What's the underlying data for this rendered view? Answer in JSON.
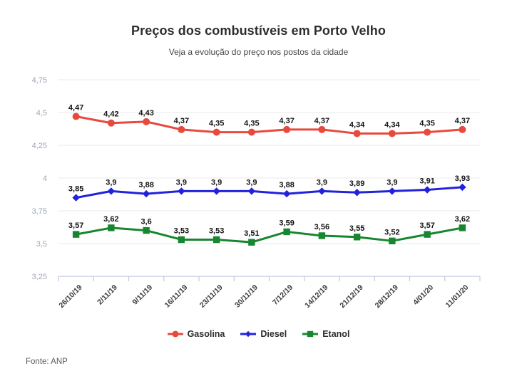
{
  "page": {
    "title": "Preços dos combustíveis em Porto Velho",
    "subtitle": "Veja a evolução do preço nos postos da cidade",
    "source": "Fonte: ANP"
  },
  "chart_data": {
    "type": "line",
    "title": "Preços dos combustíveis em Porto Velho",
    "subtitle": "Veja a evolução do preço nos postos da cidade",
    "source": "Fonte: ANP",
    "categories": [
      "26/10/19",
      "2/11/19",
      "9/11/19",
      "16/11/19",
      "23/11/19",
      "30/11/19",
      "7/12/19",
      "14/12/19",
      "21/12/19",
      "28/12/19",
      "4/01/20",
      "11/01/20"
    ],
    "series": [
      {
        "name": "Gasolina",
        "color": "#e8493d",
        "marker": "circle",
        "values": [
          4.47,
          4.42,
          4.43,
          4.37,
          4.35,
          4.35,
          4.37,
          4.37,
          4.34,
          4.34,
          4.35,
          4.37
        ],
        "labels": [
          "4,47",
          "4,42",
          "4,43",
          "4,37",
          "4,35",
          "4,35",
          "4,37",
          "4,37",
          "4,34",
          "4,34",
          "4,35",
          "4,37"
        ]
      },
      {
        "name": "Diesel",
        "color": "#2222dd",
        "marker": "diamond",
        "values": [
          3.85,
          3.9,
          3.88,
          3.9,
          3.9,
          3.9,
          3.88,
          3.9,
          3.89,
          3.9,
          3.91,
          3.93
        ],
        "labels": [
          "3,85",
          "3,9",
          "3,88",
          "3,9",
          "3,9",
          "3,9",
          "3,88",
          "3,9",
          "3,89",
          "3,9",
          "3,91",
          "3,93"
        ]
      },
      {
        "name": "Etanol",
        "color": "#17862f",
        "marker": "square",
        "values": [
          3.57,
          3.62,
          3.6,
          3.53,
          3.53,
          3.51,
          3.59,
          3.56,
          3.55,
          3.52,
          3.57,
          3.62
        ],
        "labels": [
          "3,57",
          "3,62",
          "3,6",
          "3,53",
          "3,53",
          "3,51",
          "3,59",
          "3,56",
          "3,55",
          "3,52",
          "3,57",
          "3,62"
        ]
      }
    ],
    "y_axis": {
      "ticks": [
        4.75,
        4.5,
        4.25,
        4.0,
        3.75,
        3.5,
        3.25
      ],
      "tick_labels": [
        "4,75",
        "4,5",
        "4,25",
        "4",
        "3,75",
        "3,5",
        "3,25"
      ],
      "range": [
        3.25,
        4.75
      ]
    },
    "xlabel": "",
    "ylabel": "",
    "grid": true,
    "legend_position": "bottom"
  }
}
